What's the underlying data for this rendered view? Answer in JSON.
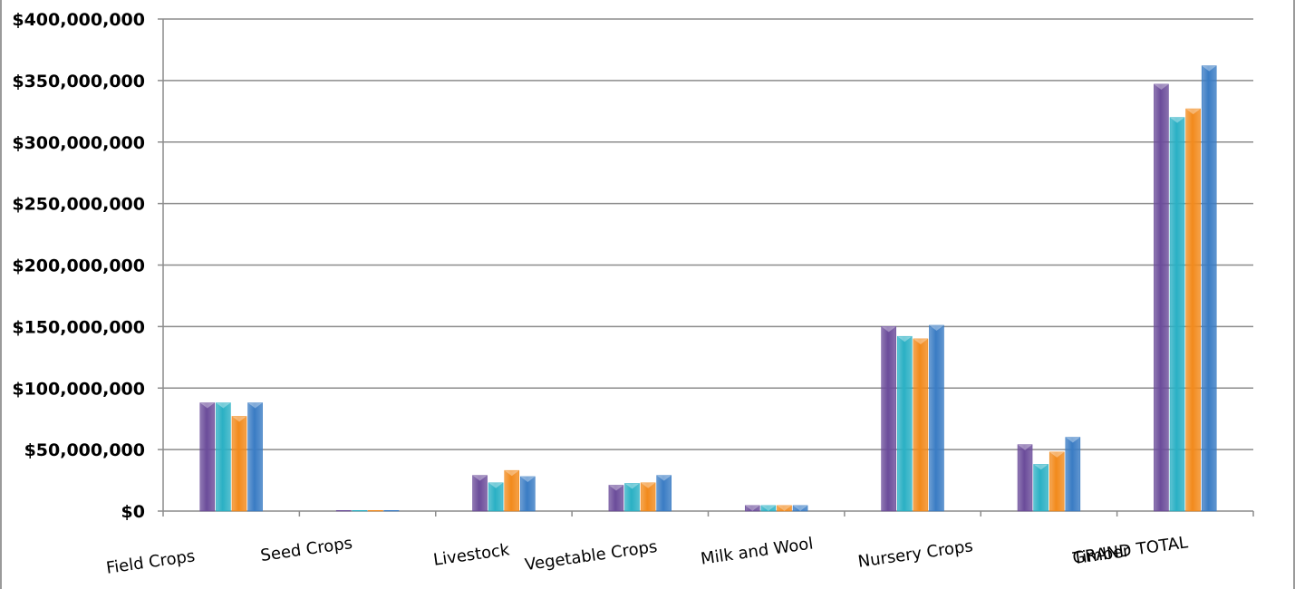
{
  "chart_data": {
    "type": "bar",
    "title": "",
    "xlabel": "",
    "ylabel": "",
    "ylim": [
      0,
      400000000
    ],
    "y_ticks": [
      "$0",
      "$50,000,000",
      "$100,000,000",
      "$150,000,000",
      "$200,000,000",
      "$250,000,000",
      "$300,000,000",
      "$350,000,000",
      "$400,000,000"
    ],
    "y_tick_values": [
      0,
      50000000,
      100000000,
      150000000,
      200000000,
      250000000,
      300000000,
      350000000,
      400000000
    ],
    "categories": [
      "Field Crops",
      "Seed Crops",
      "Livestock",
      "Vegetable Crops",
      "Milk and Wool",
      "Nursery Crops",
      "Timber",
      "GRAND TOTAL"
    ],
    "grid": true,
    "legend": "none",
    "series": [
      {
        "color": "#6b4c9a",
        "values": [
          88000000,
          500000,
          29000000,
          21000000,
          4500000,
          150000000,
          54000000,
          347000000
        ]
      },
      {
        "color": "#2ab0c4",
        "values": [
          88000000,
          500000,
          23000000,
          22500000,
          4500000,
          142000000,
          38000000,
          320000000
        ]
      },
      {
        "color": "#f28a1c",
        "values": [
          77000000,
          500000,
          33000000,
          23000000,
          4500000,
          140000000,
          48000000,
          327000000
        ]
      },
      {
        "color": "#3a7cc4",
        "values": [
          88000000,
          500000,
          28000000,
          29000000,
          4500000,
          151000000,
          60000000,
          362000000
        ]
      }
    ]
  }
}
